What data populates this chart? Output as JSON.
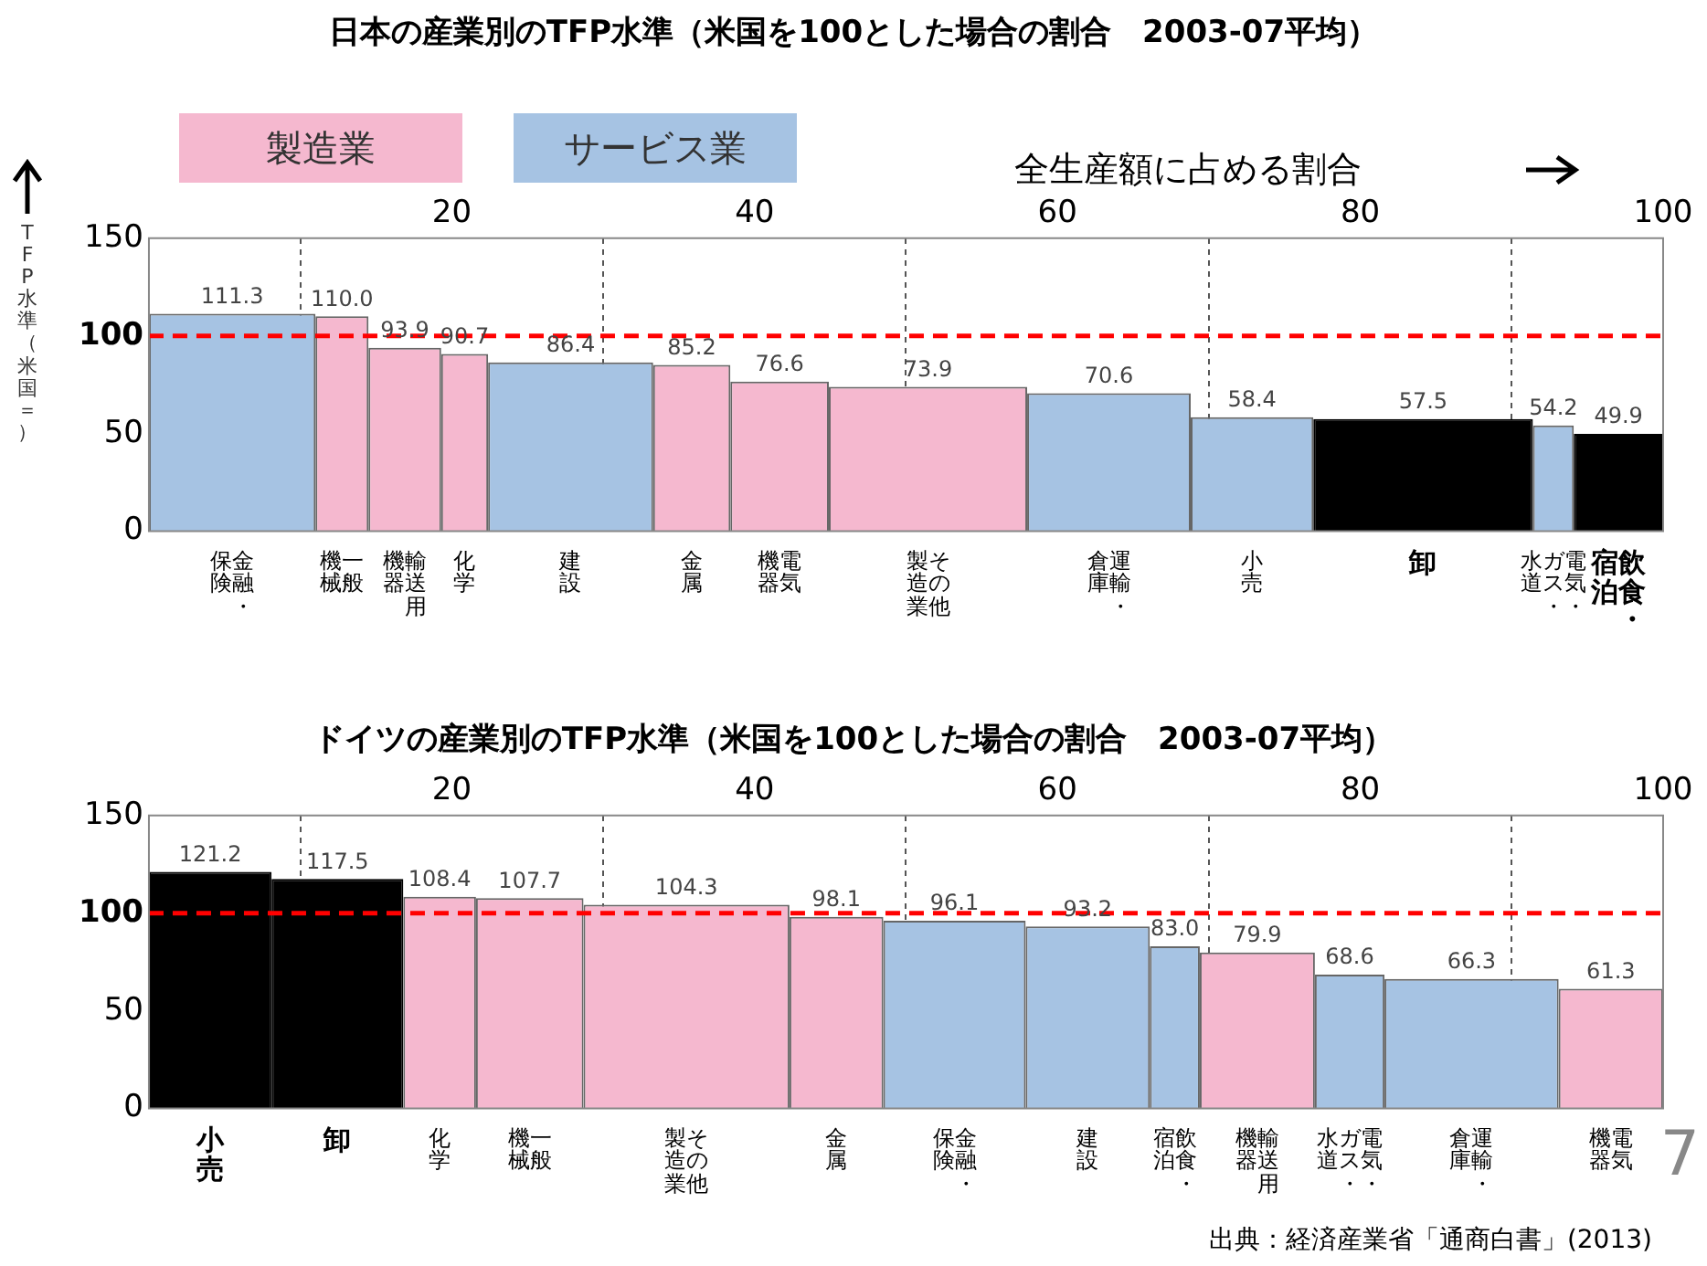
{
  "chart_data": [
    {
      "type": "bar",
      "title": "日本の産業別のTFP水準（米国を100とした場合の割合　2003-07平均）",
      "xlabel": "全生産額に占める割合",
      "ylabel": "TFP水準（米国＝）",
      "x": [
        5.5,
        12.75,
        16.9,
        20.85,
        27.85,
        35.85,
        41.65,
        51.45,
        63.4,
        72.85,
        84.15,
        92.75,
        97.05
      ],
      "series": [
        {
          "name": "製造業",
          "color": "#f5b8cf",
          "values": [
            null,
            110.0,
            93.9,
            90.7,
            null,
            85.2,
            76.6,
            73.9,
            null,
            null,
            null,
            null,
            null
          ],
          "value_labels": [
            null,
            "110.0",
            "93.9",
            "90.7",
            null,
            "85.2",
            "76.6",
            "73.9",
            null,
            null,
            null,
            null,
            null
          ]
        },
        {
          "name": "サービス業",
          "color": "#a6c3e3",
          "values": [
            111.3,
            null,
            null,
            null,
            86.4,
            null,
            null,
            null,
            70.6,
            58.4,
            null,
            54.2,
            null
          ],
          "value_labels": [
            "111.3",
            null,
            null,
            null,
            "86.4",
            null,
            null,
            null,
            "70.6",
            "58.4",
            null,
            "54.2",
            null
          ]
        },
        {
          "color": "#000000",
          "values": [
            null,
            null,
            null,
            null,
            null,
            null,
            null,
            null,
            null,
            null,
            57.5,
            null,
            49.9
          ],
          "value_labels": [
            null,
            null,
            null,
            null,
            null,
            null,
            null,
            null,
            null,
            null,
            "57.5",
            null,
            "49.9"
          ]
        }
      ],
      "xlim": [
        0,
        100
      ],
      "xticks": [
        20,
        40,
        60,
        80,
        100
      ],
      "ylim": [
        0,
        150
      ],
      "yticks": [
        0,
        50,
        100,
        150
      ],
      "grid": "x",
      "legend": "top left",
      "ref_lines": [
        {
          "axis": "y",
          "value": 100,
          "color": "#ff0000",
          "line_style": "dashed"
        }
      ],
      "annotations": [
        {
          "text": "金融・保険",
          "x": 5.5,
          "y": 0
        },
        {
          "text": "一般機械",
          "x": 12.75,
          "y": 0
        },
        {
          "text": "輸送用機器",
          "x": 16.9,
          "y": 0
        },
        {
          "text": "化学",
          "x": 20.85,
          "y": 0
        },
        {
          "text": "建設",
          "x": 27.85,
          "y": 0
        },
        {
          "text": "金属",
          "x": 35.85,
          "y": 0
        },
        {
          "text": "電気機器",
          "x": 41.65,
          "y": 0
        },
        {
          "text": "その他製造業",
          "x": 51.45,
          "y": 0
        },
        {
          "text": "運輸・倉庫",
          "x": 63.4,
          "y": 0
        },
        {
          "text": "小売",
          "x": 72.85,
          "y": 0
        },
        {
          "text": "卸",
          "x": 84.15,
          "y": 0
        },
        {
          "text": "電気・ガス・水道",
          "x": 92.75,
          "y": 0
        },
        {
          "text": "飲食・宿泊",
          "x": 97.05,
          "y": 0
        }
      ]
    },
    {
      "type": "bar",
      "title": "ドイツの産業別のTFP水準（米国を100とした場合の割合　2003-07平均）",
      "x": [
        4.05,
        12.45,
        19.2,
        25.15,
        35.5,
        45.4,
        53.2,
        62.0,
        67.75,
        73.2,
        79.3,
        87.35,
        96.55
      ],
      "series": [
        {
          "color": "#f5b8cf",
          "values": [
            null,
            null,
            108.4,
            107.7,
            104.3,
            98.1,
            null,
            null,
            null,
            79.9,
            null,
            null,
            61.3
          ],
          "value_labels": [
            null,
            null,
            "108.4",
            "107.7",
            "104.3",
            "98.1",
            null,
            null,
            null,
            "79.9",
            null,
            null,
            "61.3"
          ]
        },
        {
          "color": "#a6c3e3",
          "values": [
            null,
            null,
            null,
            null,
            null,
            null,
            96.1,
            93.2,
            83.0,
            null,
            68.6,
            66.3,
            null
          ],
          "value_labels": [
            null,
            null,
            null,
            null,
            null,
            null,
            "96.1",
            "93.2",
            "83.0",
            null,
            "68.6",
            "66.3",
            null
          ]
        },
        {
          "color": "#000000",
          "values": [
            121.2,
            117.5,
            null,
            null,
            null,
            null,
            null,
            null,
            null,
            null,
            null,
            null,
            null
          ],
          "value_labels": [
            "121.2",
            "117.5",
            null,
            null,
            null,
            null,
            null,
            null,
            null,
            null,
            null,
            null,
            null
          ]
        }
      ],
      "xlim": [
        0,
        100
      ],
      "xticks": [
        20,
        40,
        60,
        80,
        100
      ],
      "ylim": [
        0,
        150
      ],
      "yticks": [
        0,
        50,
        100,
        150
      ],
      "grid": "x",
      "ref_lines": [
        {
          "axis": "y",
          "value": 100,
          "color": "#ff0000",
          "line_style": "dashed"
        }
      ],
      "annotations": [
        {
          "text": "小売",
          "x": 4.05,
          "y": 0
        },
        {
          "text": "卸",
          "x": 12.45,
          "y": 0
        },
        {
          "text": "化学",
          "x": 19.2,
          "y": 0
        },
        {
          "text": "一般機械",
          "x": 25.15,
          "y": 0
        },
        {
          "text": "その他製造業",
          "x": 35.5,
          "y": 0
        },
        {
          "text": "金属",
          "x": 45.4,
          "y": 0
        },
        {
          "text": "金融・保険",
          "x": 53.2,
          "y": 0
        },
        {
          "text": "建設",
          "x": 62.0,
          "y": 0
        },
        {
          "text": "飲食・宿泊",
          "x": 67.75,
          "y": 0
        },
        {
          "text": "輸送用機器",
          "x": 73.2,
          "y": 0
        },
        {
          "text": "電気・ガス・水道",
          "x": 79.3,
          "y": 0
        },
        {
          "text": "運輸・倉庫",
          "x": 87.35,
          "y": 0
        },
        {
          "text": "電気機器",
          "x": 96.55,
          "y": 0
        },
        "出典：経済産業省「通商白書」(2013)",
        "7"
      ]
    }
  ]
}
